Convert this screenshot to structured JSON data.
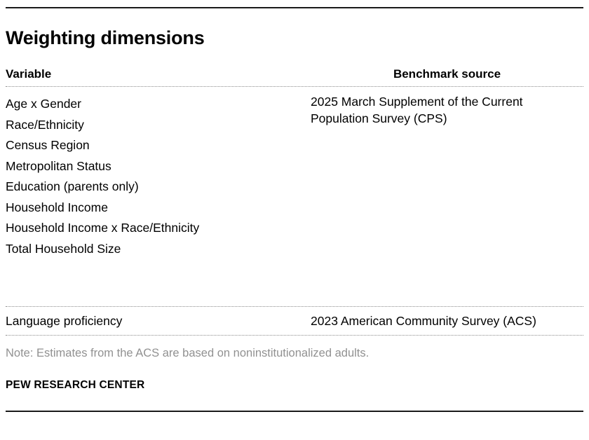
{
  "title": "Weighting dimensions",
  "table": {
    "headers": {
      "variable": "Variable",
      "benchmark": "Benchmark source"
    },
    "groups": [
      {
        "variables": [
          "Age x Gender",
          "Race/Ethnicity",
          "Census Region",
          "Metropolitan Status",
          "Education (parents only)",
          "Household Income",
          "Household Income x Race/Ethnicity",
          "Total Household Size"
        ],
        "benchmark": "2025 March Supplement of the Current Population Survey (CPS)"
      },
      {
        "variables": [
          "Language proficiency"
        ],
        "benchmark": "2023 American Community Survey (ACS)"
      }
    ]
  },
  "note": "Note: Estimates from the ACS are based on noninstitutionalized adults.",
  "footer": "PEW RESEARCH CENTER",
  "colors": {
    "text": "#000000",
    "note_gray": "#919191",
    "rule_black": "#1a1a1a",
    "dotted_gray": "#8c8c8c"
  },
  "chart_data": {
    "type": "table",
    "title": "Weighting dimensions",
    "columns": [
      "Variable",
      "Benchmark source"
    ],
    "rows": [
      [
        "Age x Gender",
        "2025 March Supplement of the Current Population Survey (CPS)"
      ],
      [
        "Race/Ethnicity",
        "2025 March Supplement of the Current Population Survey (CPS)"
      ],
      [
        "Census Region",
        "2025 March Supplement of the Current Population Survey (CPS)"
      ],
      [
        "Metropolitan Status",
        "2025 March Supplement of the Current Population Survey (CPS)"
      ],
      [
        "Education (parents only)",
        "2025 March Supplement of the Current Population Survey (CPS)"
      ],
      [
        "Household Income",
        "2025 March Supplement of the Current Population Survey (CPS)"
      ],
      [
        "Household Income x Race/Ethnicity",
        "2025 March Supplement of the Current Population Survey (CPS)"
      ],
      [
        "Total Household Size",
        "2025 March Supplement of the Current Population Survey (CPS)"
      ],
      [
        "Language proficiency",
        "2023 American Community Survey (ACS)"
      ]
    ],
    "note": "Note: Estimates from the ACS are based on noninstitutionalized adults.",
    "source_label": "PEW RESEARCH CENTER",
    "legend_position": "none",
    "grid": "dotted-row-separators"
  }
}
